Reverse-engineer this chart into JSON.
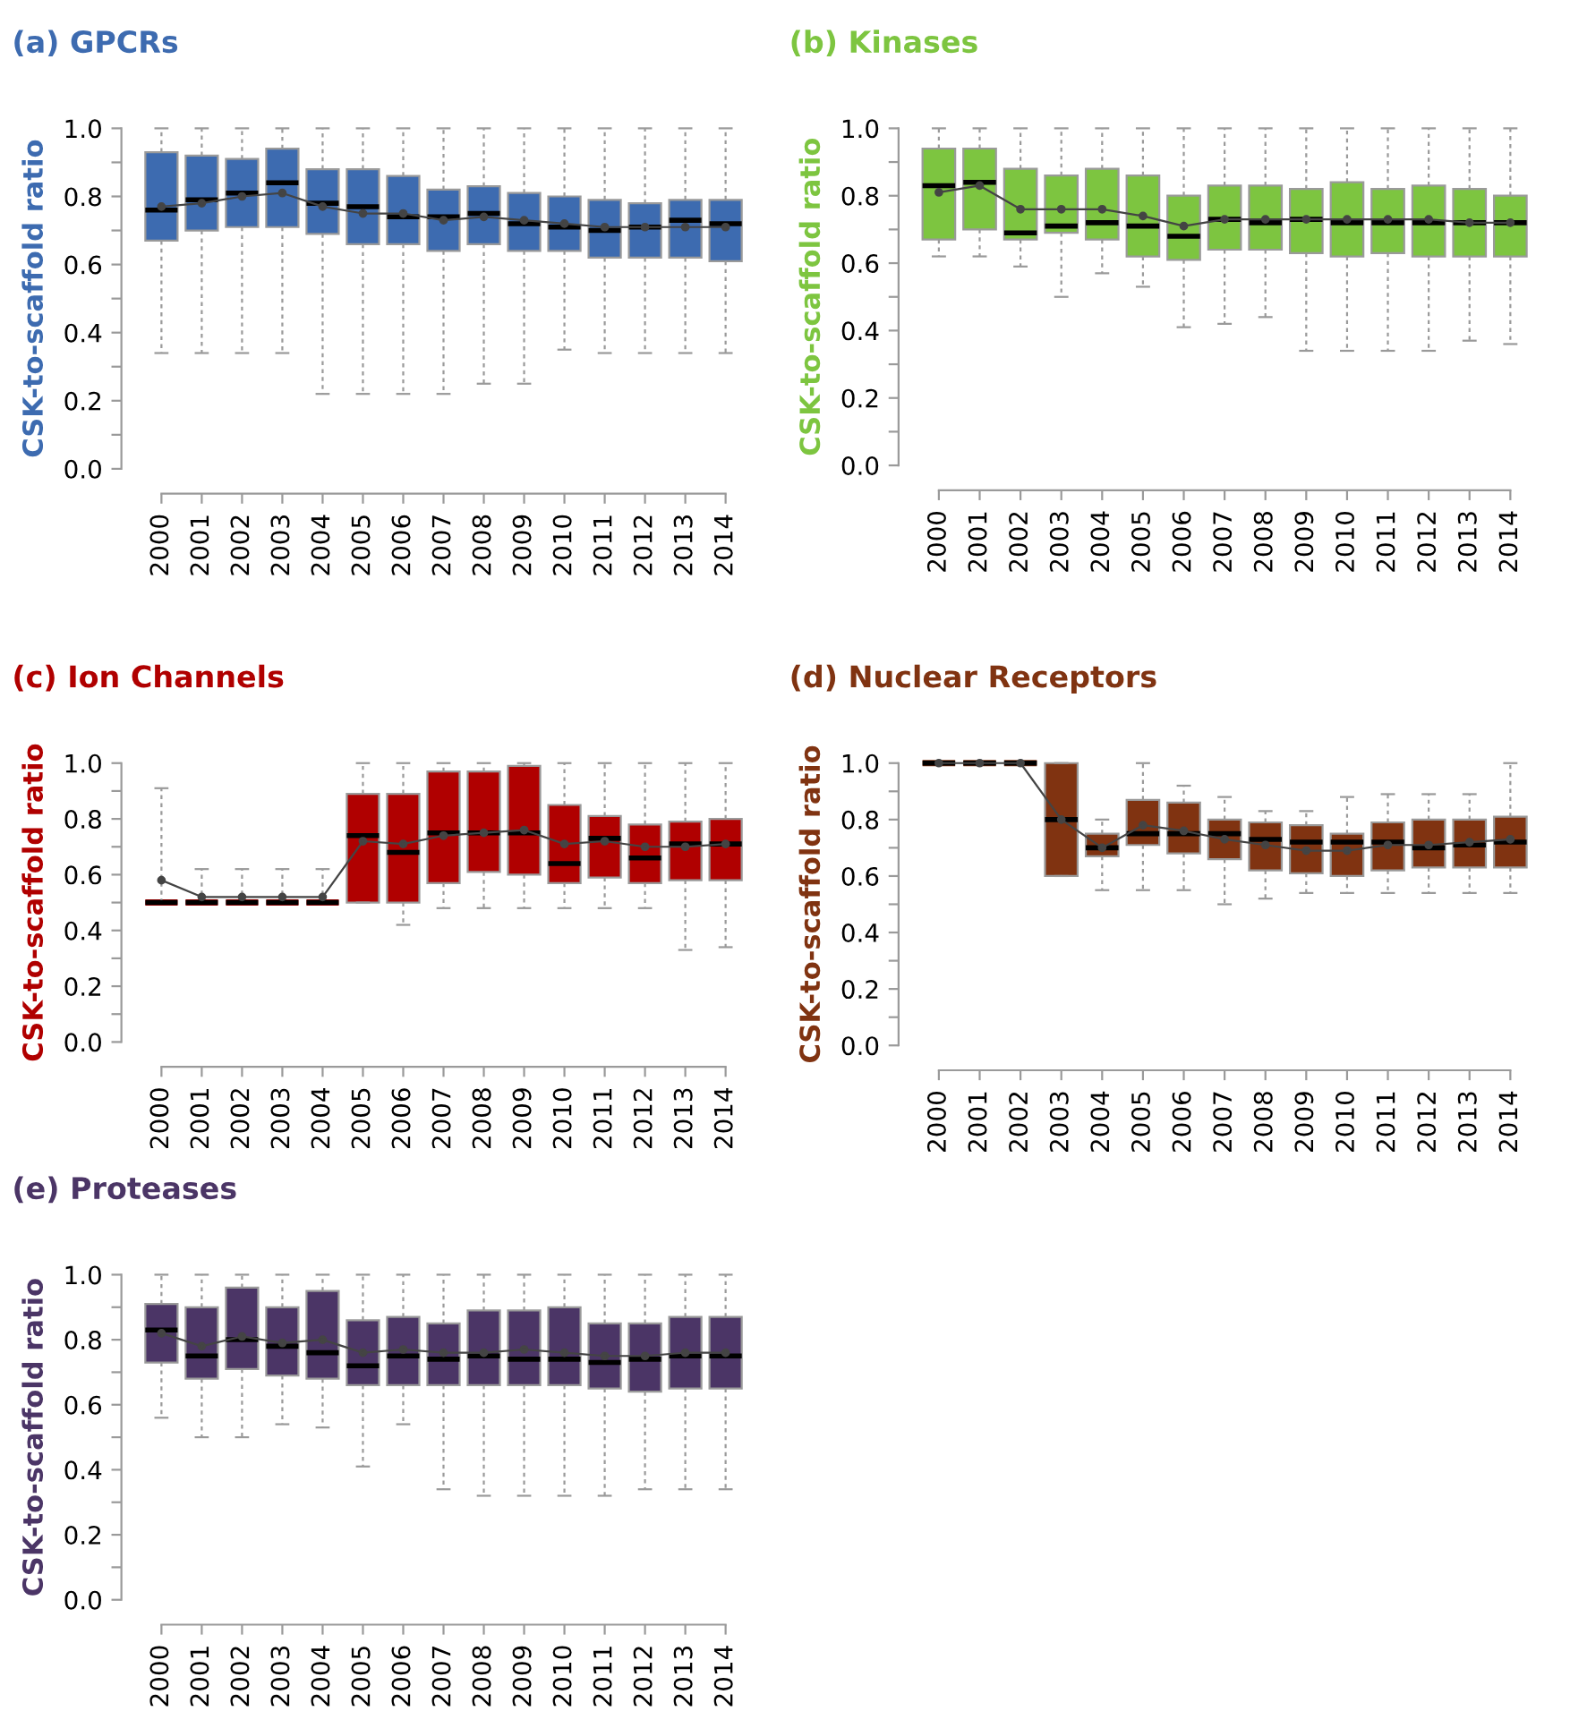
{
  "chart_data": [
    {
      "type": "box",
      "title": "(a) GPCRs",
      "ylabel": "CSK-to-scaffold ratio",
      "categories": [
        "2000",
        "2001",
        "2002",
        "2003",
        "2004",
        "2005",
        "2006",
        "2007",
        "2008",
        "2009",
        "2010",
        "2011",
        "2012",
        "2013",
        "2014"
      ],
      "ylim": [
        0,
        1
      ],
      "yticks": [
        {
          "value": 0,
          "label": "0.0"
        },
        {
          "value": 0.1,
          "label": null
        },
        {
          "value": 0.2,
          "label": "0.2"
        },
        {
          "value": 0.3,
          "label": null
        },
        {
          "value": 0.4,
          "label": "0.4"
        },
        {
          "value": 0.5,
          "label": null
        },
        {
          "value": 0.6,
          "label": "0.6"
        },
        {
          "value": 0.7,
          "label": null
        },
        {
          "value": 0.8,
          "label": "0.8"
        },
        {
          "value": 0.9,
          "label": null
        },
        {
          "value": 1,
          "label": "1.0"
        }
      ],
      "series": [
        {
          "color": "#3d6bb0",
          "boxes": [
            {
              "low": 0.34,
              "q1": 0.67,
              "median": 0.76,
              "q3": 0.93,
              "high": 1.0
            },
            {
              "low": 0.34,
              "q1": 0.7,
              "median": 0.79,
              "q3": 0.92,
              "high": 1.0
            },
            {
              "low": 0.34,
              "q1": 0.71,
              "median": 0.81,
              "q3": 0.91,
              "high": 1.0
            },
            {
              "low": 0.34,
              "q1": 0.71,
              "median": 0.84,
              "q3": 0.94,
              "high": 1.0
            },
            {
              "low": 0.22,
              "q1": 0.69,
              "median": 0.78,
              "q3": 0.88,
              "high": 1.0
            },
            {
              "low": 0.22,
              "q1": 0.66,
              "median": 0.77,
              "q3": 0.88,
              "high": 1.0
            },
            {
              "low": 0.22,
              "q1": 0.66,
              "median": 0.74,
              "q3": 0.86,
              "high": 1.0
            },
            {
              "low": 0.22,
              "q1": 0.64,
              "median": 0.74,
              "q3": 0.82,
              "high": 1.0
            },
            {
              "low": 0.25,
              "q1": 0.66,
              "median": 0.75,
              "q3": 0.83,
              "high": 1.0
            },
            {
              "low": 0.25,
              "q1": 0.64,
              "median": 0.72,
              "q3": 0.81,
              "high": 1.0
            },
            {
              "low": 0.35,
              "q1": 0.64,
              "median": 0.71,
              "q3": 0.8,
              "high": 1.0
            },
            {
              "low": 0.34,
              "q1": 0.62,
              "median": 0.7,
              "q3": 0.79,
              "high": 1.0
            },
            {
              "low": 0.34,
              "q1": 0.62,
              "median": 0.71,
              "q3": 0.78,
              "high": 1.0
            },
            {
              "low": 0.34,
              "q1": 0.62,
              "median": 0.73,
              "q3": 0.79,
              "high": 1.0
            },
            {
              "low": 0.34,
              "q1": 0.61,
              "median": 0.72,
              "q3": 0.79,
              "high": 1.0
            }
          ]
        },
        {
          "type": "line",
          "color": "#444444",
          "marker": "circle",
          "line_style": "solid",
          "values": [
            0.77,
            0.78,
            0.8,
            0.81,
            0.77,
            0.75,
            0.75,
            0.73,
            0.74,
            0.73,
            0.72,
            0.71,
            0.71,
            0.71,
            0.71
          ]
        }
      ]
    },
    {
      "type": "box",
      "title": "(b) Kinases",
      "ylabel": "CSK-to-scaffold ratio",
      "categories": [
        "2000",
        "2001",
        "2002",
        "2003",
        "2004",
        "2005",
        "2006",
        "2007",
        "2008",
        "2009",
        "2010",
        "2011",
        "2012",
        "2013",
        "2014"
      ],
      "ylim": [
        0,
        1
      ],
      "yticks": [
        {
          "value": 0,
          "label": "0.0"
        },
        {
          "value": 0.1,
          "label": null
        },
        {
          "value": 0.2,
          "label": "0.2"
        },
        {
          "value": 0.3,
          "label": null
        },
        {
          "value": 0.4,
          "label": "0.4"
        },
        {
          "value": 0.5,
          "label": null
        },
        {
          "value": 0.6,
          "label": "0.6"
        },
        {
          "value": 0.7,
          "label": null
        },
        {
          "value": 0.8,
          "label": "0.8"
        },
        {
          "value": 0.9,
          "label": null
        },
        {
          "value": 1,
          "label": "1.0"
        }
      ],
      "series": [
        {
          "color": "#7dc540",
          "boxes": [
            {
              "low": 0.62,
              "q1": 0.67,
              "median": 0.83,
              "q3": 0.94,
              "high": 1.0
            },
            {
              "low": 0.62,
              "q1": 0.7,
              "median": 0.84,
              "q3": 0.94,
              "high": 1.0
            },
            {
              "low": 0.59,
              "q1": 0.67,
              "median": 0.69,
              "q3": 0.88,
              "high": 1.0
            },
            {
              "low": 0.5,
              "q1": 0.69,
              "median": 0.71,
              "q3": 0.86,
              "high": 1.0
            },
            {
              "low": 0.57,
              "q1": 0.67,
              "median": 0.72,
              "q3": 0.88,
              "high": 1.0
            },
            {
              "low": 0.53,
              "q1": 0.62,
              "median": 0.71,
              "q3": 0.86,
              "high": 1.0
            },
            {
              "low": 0.41,
              "q1": 0.61,
              "median": 0.68,
              "q3": 0.8,
              "high": 1.0
            },
            {
              "low": 0.42,
              "q1": 0.64,
              "median": 0.73,
              "q3": 0.83,
              "high": 1.0
            },
            {
              "low": 0.44,
              "q1": 0.64,
              "median": 0.72,
              "q3": 0.83,
              "high": 1.0
            },
            {
              "low": 0.34,
              "q1": 0.63,
              "median": 0.73,
              "q3": 0.82,
              "high": 1.0
            },
            {
              "low": 0.34,
              "q1": 0.62,
              "median": 0.72,
              "q3": 0.84,
              "high": 1.0
            },
            {
              "low": 0.34,
              "q1": 0.63,
              "median": 0.72,
              "q3": 0.82,
              "high": 1.0
            },
            {
              "low": 0.34,
              "q1": 0.62,
              "median": 0.72,
              "q3": 0.83,
              "high": 1.0
            },
            {
              "low": 0.37,
              "q1": 0.62,
              "median": 0.72,
              "q3": 0.82,
              "high": 1.0
            },
            {
              "low": 0.36,
              "q1": 0.62,
              "median": 0.72,
              "q3": 0.8,
              "high": 1.0
            }
          ]
        },
        {
          "type": "line",
          "color": "#444444",
          "marker": "circle",
          "line_style": "solid",
          "values": [
            0.81,
            0.83,
            0.76,
            0.76,
            0.76,
            0.74,
            0.71,
            0.73,
            0.73,
            0.73,
            0.73,
            0.73,
            0.73,
            0.72,
            0.72
          ]
        }
      ]
    },
    {
      "type": "box",
      "title": "(c) Ion Channels",
      "ylabel": "CSK-to-scaffold ratio",
      "categories": [
        "2000",
        "2001",
        "2002",
        "2003",
        "2004",
        "2005",
        "2006",
        "2007",
        "2008",
        "2009",
        "2010",
        "2011",
        "2012",
        "2013",
        "2014"
      ],
      "ylim": [
        0,
        1
      ],
      "yticks": [
        {
          "value": 0,
          "label": "0.0"
        },
        {
          "value": 0.1,
          "label": null
        },
        {
          "value": 0.2,
          "label": "0.2"
        },
        {
          "value": 0.3,
          "label": null
        },
        {
          "value": 0.4,
          "label": "0.4"
        },
        {
          "value": 0.5,
          "label": null
        },
        {
          "value": 0.6,
          "label": "0.6"
        },
        {
          "value": 0.7,
          "label": null
        },
        {
          "value": 0.8,
          "label": "0.8"
        },
        {
          "value": 0.9,
          "label": null
        },
        {
          "value": 1,
          "label": "1.0"
        }
      ],
      "series": [
        {
          "color": "#b00000",
          "boxes": [
            {
              "low": 0.5,
              "q1": 0.5,
              "median": 0.5,
              "q3": 0.5,
              "high": 0.91
            },
            {
              "low": 0.5,
              "q1": 0.5,
              "median": 0.5,
              "q3": 0.5,
              "high": 0.62
            },
            {
              "low": 0.5,
              "q1": 0.5,
              "median": 0.5,
              "q3": 0.5,
              "high": 0.62
            },
            {
              "low": 0.5,
              "q1": 0.5,
              "median": 0.5,
              "q3": 0.5,
              "high": 0.62
            },
            {
              "low": 0.5,
              "q1": 0.5,
              "median": 0.5,
              "q3": 0.5,
              "high": 0.62
            },
            {
              "low": 0.5,
              "q1": 0.5,
              "median": 0.74,
              "q3": 0.89,
              "high": 1.0
            },
            {
              "low": 0.42,
              "q1": 0.5,
              "median": 0.68,
              "q3": 0.89,
              "high": 1.0
            },
            {
              "low": 0.48,
              "q1": 0.57,
              "median": 0.75,
              "q3": 0.97,
              "high": 1.0
            },
            {
              "low": 0.48,
              "q1": 0.61,
              "median": 0.75,
              "q3": 0.97,
              "high": 1.0
            },
            {
              "low": 0.48,
              "q1": 0.6,
              "median": 0.75,
              "q3": 0.99,
              "high": 1.0
            },
            {
              "low": 0.48,
              "q1": 0.57,
              "median": 0.64,
              "q3": 0.85,
              "high": 1.0
            },
            {
              "low": 0.48,
              "q1": 0.59,
              "median": 0.73,
              "q3": 0.81,
              "high": 1.0
            },
            {
              "low": 0.48,
              "q1": 0.57,
              "median": 0.66,
              "q3": 0.78,
              "high": 1.0
            },
            {
              "low": 0.33,
              "q1": 0.58,
              "median": 0.71,
              "q3": 0.79,
              "high": 1.0
            },
            {
              "low": 0.34,
              "q1": 0.58,
              "median": 0.71,
              "q3": 0.8,
              "high": 1.0
            }
          ]
        },
        {
          "type": "line",
          "color": "#444444",
          "marker": "circle",
          "line_style": "solid",
          "values": [
            0.58,
            0.52,
            0.52,
            0.52,
            0.52,
            0.72,
            0.71,
            0.74,
            0.75,
            0.76,
            0.71,
            0.72,
            0.7,
            0.7,
            0.71
          ]
        }
      ]
    },
    {
      "type": "box",
      "title": "(d) Nuclear Receptors",
      "ylabel": "CSK-to-scaffold ratio",
      "categories": [
        "2000",
        "2001",
        "2002",
        "2003",
        "2004",
        "2005",
        "2006",
        "2007",
        "2008",
        "2009",
        "2010",
        "2011",
        "2012",
        "2013",
        "2014"
      ],
      "ylim": [
        0,
        1
      ],
      "yticks": [
        {
          "value": 0,
          "label": "0.0"
        },
        {
          "value": 0.1,
          "label": null
        },
        {
          "value": 0.2,
          "label": "0.2"
        },
        {
          "value": 0.3,
          "label": null
        },
        {
          "value": 0.4,
          "label": "0.4"
        },
        {
          "value": 0.5,
          "label": null
        },
        {
          "value": 0.6,
          "label": "0.6"
        },
        {
          "value": 0.7,
          "label": null
        },
        {
          "value": 0.8,
          "label": "0.8"
        },
        {
          "value": 0.9,
          "label": null
        },
        {
          "value": 1,
          "label": "1.0"
        }
      ],
      "series": [
        {
          "color": "#803311",
          "boxes": [
            {
              "low": 1.0,
              "q1": 1.0,
              "median": 1.0,
              "q3": 1.0,
              "high": 1.0
            },
            {
              "low": 1.0,
              "q1": 1.0,
              "median": 1.0,
              "q3": 1.0,
              "high": 1.0
            },
            {
              "low": 1.0,
              "q1": 1.0,
              "median": 1.0,
              "q3": 1.0,
              "high": 1.0
            },
            {
              "low": 0.6,
              "q1": 0.6,
              "median": 0.8,
              "q3": 1.0,
              "high": 1.0
            },
            {
              "low": 0.55,
              "q1": 0.67,
              "median": 0.7,
              "q3": 0.75,
              "high": 0.8
            },
            {
              "low": 0.55,
              "q1": 0.71,
              "median": 0.75,
              "q3": 0.87,
              "high": 1.0
            },
            {
              "low": 0.55,
              "q1": 0.68,
              "median": 0.75,
              "q3": 0.86,
              "high": 0.92
            },
            {
              "low": 0.5,
              "q1": 0.66,
              "median": 0.75,
              "q3": 0.8,
              "high": 0.88
            },
            {
              "low": 0.52,
              "q1": 0.62,
              "median": 0.73,
              "q3": 0.79,
              "high": 0.83
            },
            {
              "low": 0.54,
              "q1": 0.61,
              "median": 0.72,
              "q3": 0.78,
              "high": 0.83
            },
            {
              "low": 0.54,
              "q1": 0.6,
              "median": 0.72,
              "q3": 0.75,
              "high": 0.88
            },
            {
              "low": 0.54,
              "q1": 0.62,
              "median": 0.72,
              "q3": 0.79,
              "high": 0.89
            },
            {
              "low": 0.54,
              "q1": 0.63,
              "median": 0.7,
              "q3": 0.8,
              "high": 0.89
            },
            {
              "low": 0.54,
              "q1": 0.63,
              "median": 0.71,
              "q3": 0.8,
              "high": 0.89
            },
            {
              "low": 0.54,
              "q1": 0.63,
              "median": 0.72,
              "q3": 0.81,
              "high": 1.0
            }
          ]
        },
        {
          "type": "line",
          "color": "#444444",
          "marker": "circle",
          "line_style": "solid",
          "values": [
            1.0,
            1.0,
            1.0,
            0.8,
            0.7,
            0.78,
            0.76,
            0.73,
            0.71,
            0.69,
            0.69,
            0.71,
            0.71,
            0.72,
            0.73
          ]
        }
      ]
    },
    {
      "type": "box",
      "title": "(e) Proteases",
      "ylabel": "CSK-to-scaffold ratio",
      "categories": [
        "2000",
        "2001",
        "2002",
        "2003",
        "2004",
        "2005",
        "2006",
        "2007",
        "2008",
        "2009",
        "2010",
        "2011",
        "2012",
        "2013",
        "2014"
      ],
      "ylim": [
        0,
        1
      ],
      "yticks": [
        {
          "value": 0,
          "label": "0.0"
        },
        {
          "value": 0.1,
          "label": null
        },
        {
          "value": 0.2,
          "label": "0.2"
        },
        {
          "value": 0.3,
          "label": null
        },
        {
          "value": 0.4,
          "label": "0.4"
        },
        {
          "value": 0.5,
          "label": null
        },
        {
          "value": 0.6,
          "label": "0.6"
        },
        {
          "value": 0.7,
          "label": null
        },
        {
          "value": 0.8,
          "label": "0.8"
        },
        {
          "value": 0.9,
          "label": null
        },
        {
          "value": 1,
          "label": "1.0"
        }
      ],
      "series": [
        {
          "color": "#4b3566",
          "boxes": [
            {
              "low": 0.56,
              "q1": 0.73,
              "median": 0.83,
              "q3": 0.91,
              "high": 1.0
            },
            {
              "low": 0.5,
              "q1": 0.68,
              "median": 0.75,
              "q3": 0.9,
              "high": 1.0
            },
            {
              "low": 0.5,
              "q1": 0.71,
              "median": 0.8,
              "q3": 0.96,
              "high": 1.0
            },
            {
              "low": 0.54,
              "q1": 0.69,
              "median": 0.78,
              "q3": 0.9,
              "high": 1.0
            },
            {
              "low": 0.53,
              "q1": 0.68,
              "median": 0.76,
              "q3": 0.95,
              "high": 1.0
            },
            {
              "low": 0.41,
              "q1": 0.66,
              "median": 0.72,
              "q3": 0.86,
              "high": 1.0
            },
            {
              "low": 0.54,
              "q1": 0.66,
              "median": 0.75,
              "q3": 0.87,
              "high": 1.0
            },
            {
              "low": 0.34,
              "q1": 0.66,
              "median": 0.74,
              "q3": 0.85,
              "high": 1.0
            },
            {
              "low": 0.32,
              "q1": 0.66,
              "median": 0.75,
              "q3": 0.89,
              "high": 1.0
            },
            {
              "low": 0.32,
              "q1": 0.66,
              "median": 0.74,
              "q3": 0.89,
              "high": 1.0
            },
            {
              "low": 0.32,
              "q1": 0.66,
              "median": 0.74,
              "q3": 0.9,
              "high": 1.0
            },
            {
              "low": 0.32,
              "q1": 0.65,
              "median": 0.73,
              "q3": 0.85,
              "high": 1.0
            },
            {
              "low": 0.34,
              "q1": 0.64,
              "median": 0.74,
              "q3": 0.85,
              "high": 1.0
            },
            {
              "low": 0.34,
              "q1": 0.65,
              "median": 0.75,
              "q3": 0.87,
              "high": 1.0
            },
            {
              "low": 0.34,
              "q1": 0.65,
              "median": 0.75,
              "q3": 0.87,
              "high": 1.0
            }
          ]
        },
        {
          "type": "line",
          "color": "#444444",
          "marker": "circle",
          "line_style": "solid",
          "values": [
            0.82,
            0.78,
            0.81,
            0.79,
            0.8,
            0.76,
            0.77,
            0.76,
            0.76,
            0.77,
            0.76,
            0.75,
            0.75,
            0.76,
            0.76
          ]
        }
      ]
    }
  ]
}
